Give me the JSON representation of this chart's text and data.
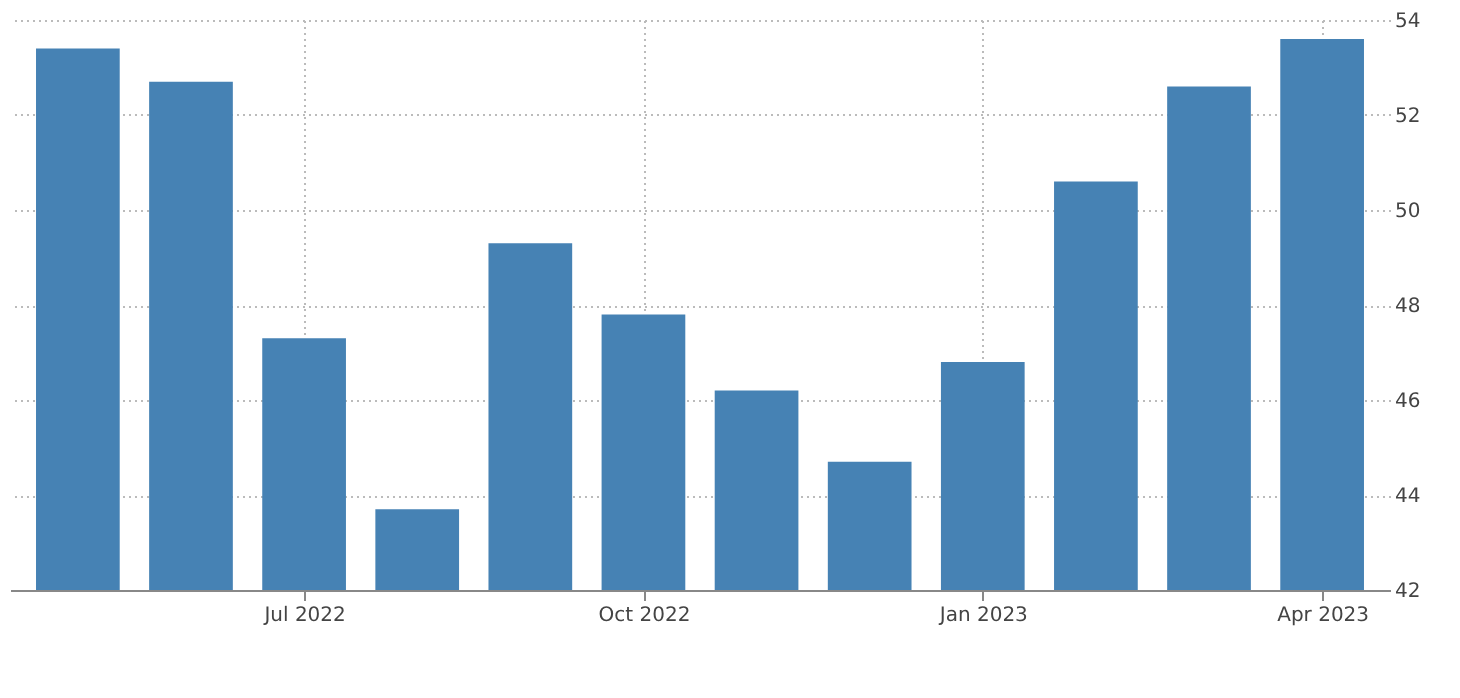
{
  "chart_data": {
    "type": "bar",
    "categories": [
      null,
      null,
      "Jul 2022",
      null,
      null,
      "Oct 2022",
      null,
      null,
      "Jan 2023",
      null,
      null,
      "Apr 2023"
    ],
    "values": [
      53.4,
      52.7,
      47.3,
      43.7,
      49.3,
      47.8,
      46.2,
      44.7,
      46.8,
      50.6,
      52.6,
      53.6
    ],
    "color": "#4682b4",
    "ylim": [
      42,
      54
    ],
    "yticks": [
      42,
      44,
      46,
      48,
      50,
      52,
      54
    ],
    "grid": true
  }
}
